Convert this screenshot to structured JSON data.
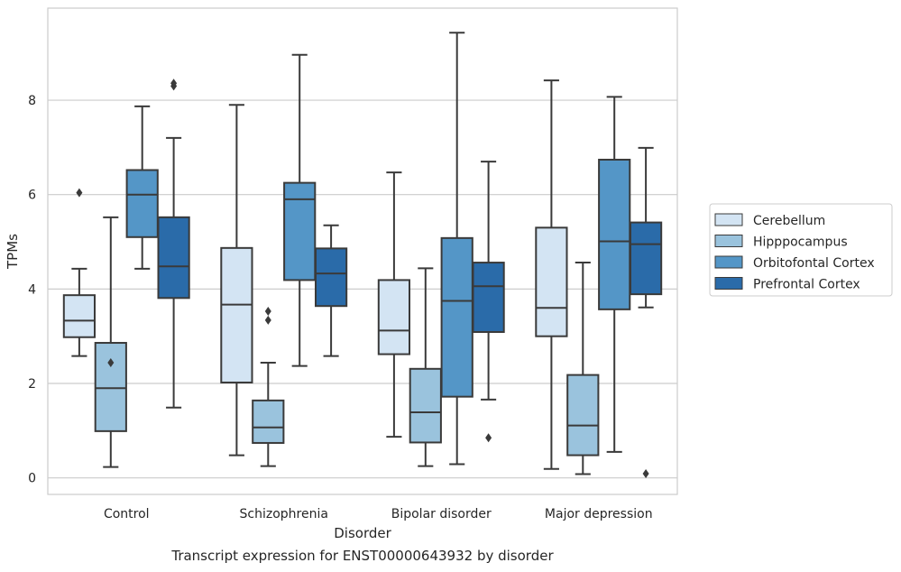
{
  "chart_data": {
    "type": "box",
    "xlabel": "Disorder",
    "ylabel": "TPMs",
    "caption": "Transcript expression for ENST00000643932 by disorder",
    "ylim": [
      -0.35,
      9.95
    ],
    "yticks": [
      0,
      2,
      4,
      6,
      8
    ],
    "grid": "horizontal",
    "legend_position": "right",
    "categories": [
      "Control",
      "Schizophrenia",
      "Bipolar disorder",
      "Major depression"
    ],
    "series": [
      {
        "name": "Cerebellum",
        "color": "#d3e4f3",
        "boxes": [
          {
            "whisker_low": 2.58,
            "q1": 2.98,
            "median": 3.33,
            "q3": 3.87,
            "whisker_high": 4.43,
            "outliers": [
              6.04
            ]
          },
          {
            "whisker_low": 0.48,
            "q1": 2.02,
            "median": 3.67,
            "q3": 4.87,
            "whisker_high": 7.9,
            "outliers": []
          },
          {
            "whisker_low": 0.87,
            "q1": 2.62,
            "median": 3.12,
            "q3": 4.19,
            "whisker_high": 6.47,
            "outliers": []
          },
          {
            "whisker_low": 0.19,
            "q1": 3.0,
            "median": 3.6,
            "q3": 5.3,
            "whisker_high": 8.42,
            "outliers": []
          }
        ]
      },
      {
        "name": "Hipppocampus",
        "color": "#9ac3dd",
        "boxes": [
          {
            "whisker_low": 0.23,
            "q1": 0.99,
            "median": 1.9,
            "q3": 2.86,
            "whisker_high": 5.52,
            "outliers": [
              2.44
            ]
          },
          {
            "whisker_low": 0.25,
            "q1": 0.74,
            "median": 1.07,
            "q3": 1.64,
            "whisker_high": 2.44,
            "outliers": [
              3.34,
              3.53
            ]
          },
          {
            "whisker_low": 0.25,
            "q1": 0.75,
            "median": 1.39,
            "q3": 2.31,
            "whisker_high": 4.44,
            "outliers": []
          },
          {
            "whisker_low": 0.08,
            "q1": 0.48,
            "median": 1.11,
            "q3": 2.18,
            "whisker_high": 4.56,
            "outliers": []
          }
        ]
      },
      {
        "name": "Orbitofontal Cortex",
        "color": "#5496c7",
        "boxes": [
          {
            "whisker_low": 4.43,
            "q1": 5.1,
            "median": 6.0,
            "q3": 6.52,
            "whisker_high": 7.87,
            "outliers": []
          },
          {
            "whisker_low": 2.37,
            "q1": 4.19,
            "median": 5.9,
            "q3": 6.25,
            "whisker_high": 8.96,
            "outliers": []
          },
          {
            "whisker_low": 0.29,
            "q1": 1.72,
            "median": 3.75,
            "q3": 5.08,
            "whisker_high": 9.43,
            "outliers": []
          },
          {
            "whisker_low": 0.55,
            "q1": 3.57,
            "median": 5.01,
            "q3": 6.74,
            "whisker_high": 8.07,
            "outliers": []
          }
        ]
      },
      {
        "name": "Prefrontal Cortex",
        "color": "#2a6ba9",
        "boxes": [
          {
            "whisker_low": 1.49,
            "q1": 3.81,
            "median": 4.48,
            "q3": 5.52,
            "whisker_high": 7.2,
            "outliers": [
              8.3,
              8.36
            ]
          },
          {
            "whisker_low": 2.58,
            "q1": 3.64,
            "median": 4.33,
            "q3": 4.86,
            "whisker_high": 5.35,
            "outliers": []
          },
          {
            "whisker_low": 1.66,
            "q1": 3.09,
            "median": 4.06,
            "q3": 4.56,
            "whisker_high": 6.7,
            "outliers": [
              0.85
            ]
          },
          {
            "whisker_low": 3.61,
            "q1": 3.89,
            "median": 4.95,
            "q3": 5.41,
            "whisker_high": 6.99,
            "outliers": [
              0.09
            ]
          }
        ]
      }
    ]
  }
}
